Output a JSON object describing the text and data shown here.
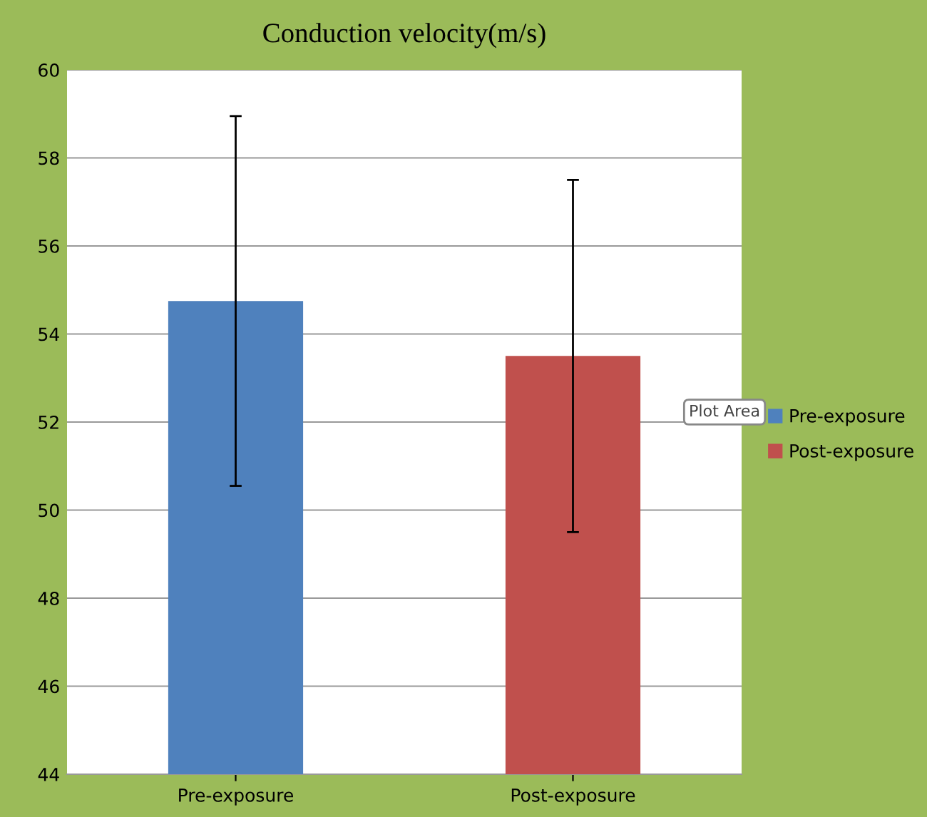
{
  "chart_data": {
    "type": "bar",
    "title": "Conduction velocity(m/s)",
    "categories": [
      "Pre-exposure",
      "Post-exposure"
    ],
    "series": [
      {
        "name": "Pre-exposure",
        "color": "#4f81bd",
        "values": [
          54.75,
          null
        ],
        "errors": [
          4.2,
          null
        ]
      },
      {
        "name": "Post-exposure",
        "color": "#c0504d",
        "values": [
          null,
          53.5
        ],
        "errors": [
          null,
          4.0
        ]
      }
    ],
    "ylim": [
      44,
      60
    ],
    "yticks": [
      44,
      46,
      48,
      50,
      52,
      54,
      56,
      58,
      60
    ],
    "grid": "y",
    "legend": "right",
    "annotations": [
      "Plot Area"
    ]
  }
}
